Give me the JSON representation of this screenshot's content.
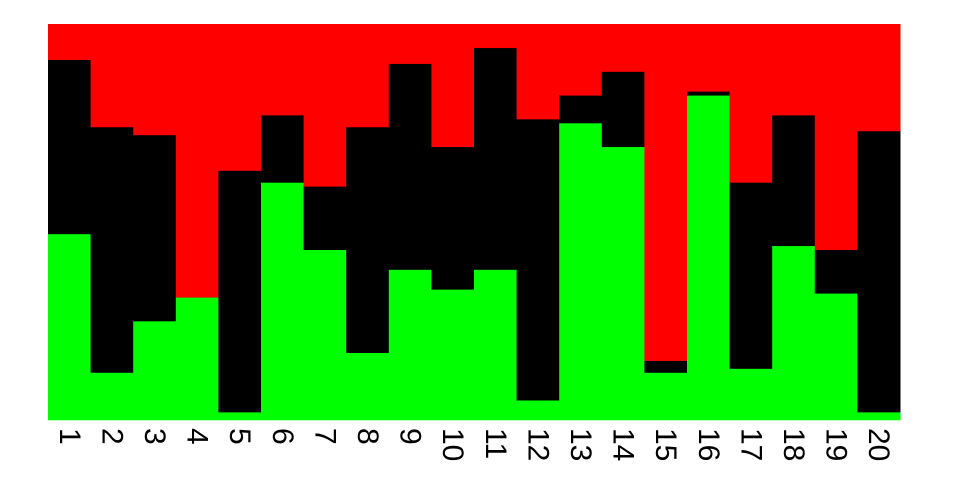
{
  "chart_data": {
    "type": "bar",
    "stacked": true,
    "normalized": true,
    "categories": [
      "1",
      "2",
      "3",
      "4",
      "5",
      "6",
      "7",
      "8",
      "9",
      "10",
      "11",
      "12",
      "13",
      "14",
      "15",
      "16",
      "17",
      "18",
      "19",
      "20"
    ],
    "series": [
      {
        "color": "#00ff00",
        "values": [
          0.47,
          0.12,
          0.25,
          0.31,
          0.02,
          0.6,
          0.43,
          0.17,
          0.38,
          0.33,
          0.38,
          0.05,
          0.75,
          0.69,
          0.12,
          0.82,
          0.13,
          0.44,
          0.32,
          0.02
        ]
      },
      {
        "color": "#000000",
        "values": [
          0.44,
          0.62,
          0.47,
          0.0,
          0.61,
          0.17,
          0.16,
          0.57,
          0.52,
          0.36,
          0.56,
          0.71,
          0.07,
          0.19,
          0.03,
          0.01,
          0.47,
          0.33,
          0.11,
          0.71
        ]
      },
      {
        "color": "#ff0000",
        "values": [
          0.09,
          0.26,
          0.28,
          0.69,
          0.37,
          0.23,
          0.41,
          0.26,
          0.1,
          0.31,
          0.06,
          0.24,
          0.18,
          0.12,
          0.85,
          0.17,
          0.4,
          0.23,
          0.57,
          0.27
        ]
      }
    ],
    "ylim": [
      0,
      1
    ],
    "grid": false,
    "legend": "none",
    "tick_label_rotation": "vertical"
  }
}
